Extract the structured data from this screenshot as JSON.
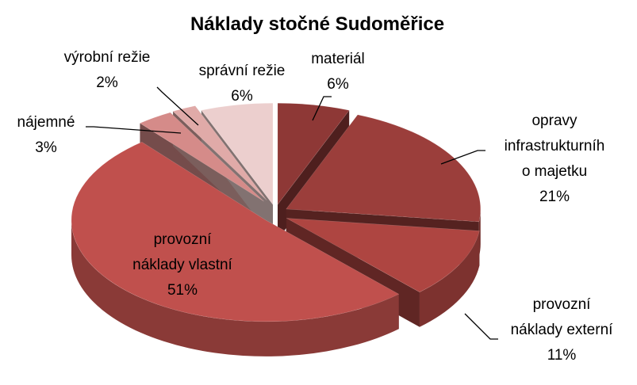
{
  "chart_data": {
    "type": "pie3d",
    "title": "Náklady stočné Sudoměřice",
    "categories": [
      "materiál",
      "opravy\ninfrastrukturníh\no majetku",
      "provozní\nnáklady externí",
      "provozní\nnáklady vlastní",
      "nájemné",
      "výrobní režie",
      "správní režie"
    ],
    "values": [
      6,
      21,
      11,
      51,
      3,
      2,
      6
    ],
    "value_labels": [
      "6%",
      "21%",
      "11%",
      "51%",
      "3%",
      "2%",
      "6%"
    ],
    "colors": [
      "#8e3836",
      "#9b3e3b",
      "#ae4541",
      "#c0504d",
      "#d58b89",
      "#e0aaa8",
      "#eccfce"
    ]
  }
}
